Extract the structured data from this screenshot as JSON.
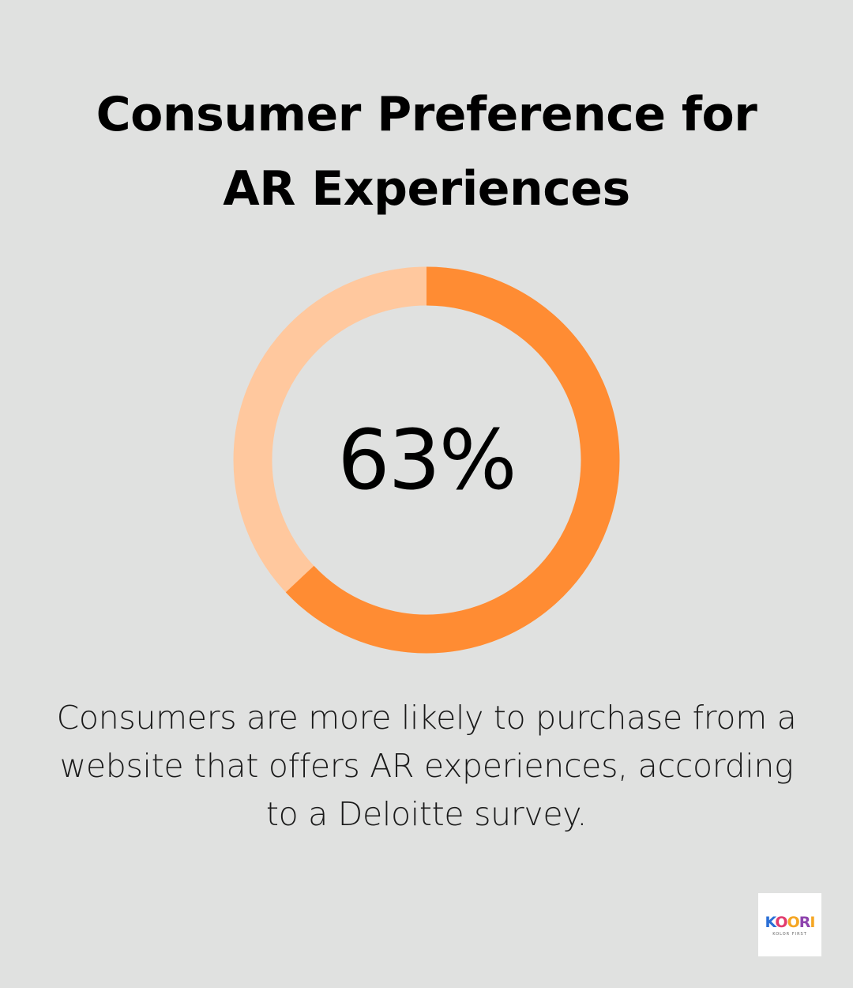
{
  "title_lines": [
    "Consumer Preference for",
    "AR Experiences"
  ],
  "description_lines": [
    "Consumers are more likely to purchase from a",
    "website that offers AR experiences, according",
    "to a Deloitte survey."
  ],
  "chart_data": {
    "type": "pie",
    "style": "donut",
    "value": 63,
    "center_label": "63%",
    "max": 100,
    "colors": {
      "filled": "#ff8c33",
      "remainder": "#ffc89e"
    }
  },
  "logo": {
    "name": "koor-logo",
    "text": "KOORI",
    "tagline": "KOLOR FIRST"
  }
}
